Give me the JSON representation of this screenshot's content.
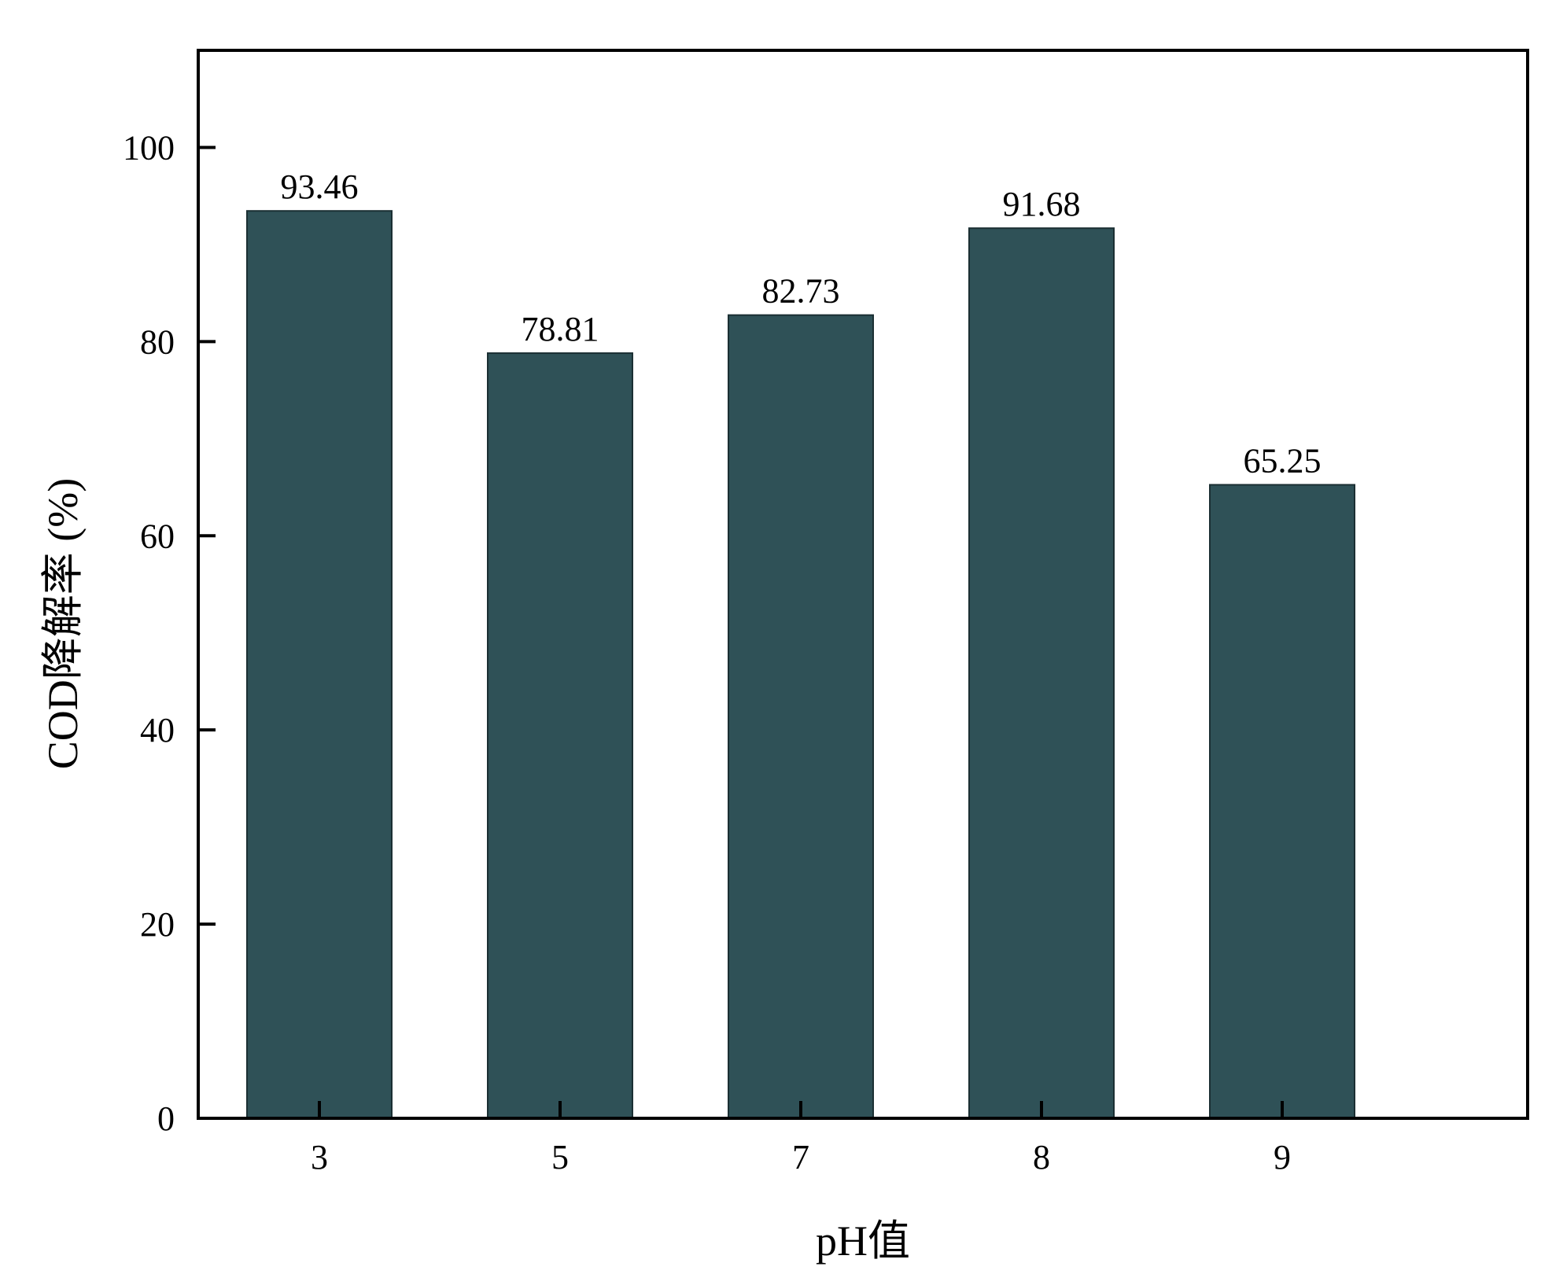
{
  "chart_data": {
    "type": "bar",
    "categories": [
      "3",
      "5",
      "7",
      "8",
      "9"
    ],
    "values": [
      93.46,
      78.81,
      82.73,
      91.68,
      65.25
    ],
    "data_labels": [
      "93.46",
      "78.81",
      "82.73",
      "91.68",
      "65.25"
    ],
    "xlabel": "pH值",
    "ylabel": "COD降解率 (%)",
    "ylim": [
      0,
      110
    ],
    "yticks": [
      0,
      20,
      40,
      60,
      80,
      100
    ],
    "ytick_labels": [
      "0",
      "20",
      "40",
      "60",
      "80",
      "100"
    ],
    "grid": false,
    "legend": "none",
    "bar_color": "#2f5157",
    "axis_color": "#000000"
  }
}
